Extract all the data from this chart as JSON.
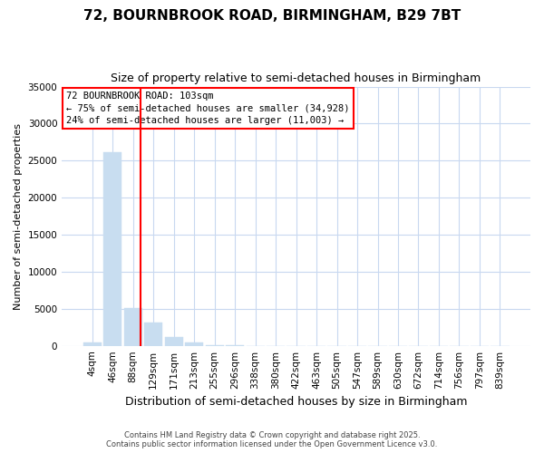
{
  "title_line1": "72, BOURNBROOK ROAD, BIRMINGHAM, B29 7BT",
  "title_line2": "Size of property relative to semi-detached houses in Birmingham",
  "xlabel": "Distribution of semi-detached houses by size in Birmingham",
  "ylabel": "Number of semi-detached properties",
  "bar_labels": [
    "4sqm",
    "46sqm",
    "88sqm",
    "129sqm",
    "171sqm",
    "213sqm",
    "255sqm",
    "296sqm",
    "338sqm",
    "380sqm",
    "422sqm",
    "463sqm",
    "505sqm",
    "547sqm",
    "589sqm",
    "630sqm",
    "672sqm",
    "714sqm",
    "756sqm",
    "797sqm",
    "839sqm"
  ],
  "bar_values": [
    400,
    26100,
    5100,
    3100,
    1200,
    450,
    100,
    50,
    0,
    0,
    0,
    0,
    0,
    0,
    0,
    0,
    0,
    0,
    0,
    0,
    0
  ],
  "bar_color": "#c8ddf0",
  "bar_edgecolor": "#c8ddf0",
  "property_sqm": 103,
  "pct_smaller": 75,
  "count_smaller": 34928,
  "pct_larger": 24,
  "count_larger": 11003,
  "vline_color": "red",
  "vline_x_index": 2.5,
  "ylim": [
    0,
    35000
  ],
  "yticks": [
    0,
    5000,
    10000,
    15000,
    20000,
    25000,
    30000,
    35000
  ],
  "plot_bg_color": "#ffffff",
  "fig_bg_color": "#ffffff",
  "grid_color": "#c8d8f0",
  "footer_line1": "Contains HM Land Registry data © Crown copyright and database right 2025.",
  "footer_line2": "Contains public sector information licensed under the Open Government Licence v3.0.",
  "title_fontsize": 11,
  "subtitle_fontsize": 9,
  "ylabel_fontsize": 8,
  "xlabel_fontsize": 9,
  "tick_fontsize": 7.5,
  "annot_fontsize": 7.5
}
